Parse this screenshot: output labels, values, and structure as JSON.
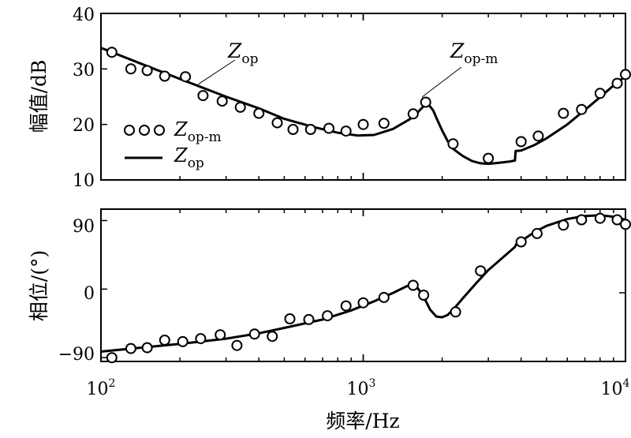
{
  "chart_data": [
    {
      "type": "line",
      "ylabel": "幅值/dB",
      "xscale": "log",
      "xlim": [
        100,
        10000
      ],
      "ylim": [
        10,
        40
      ],
      "yticks": [
        "10",
        "20",
        "30",
        "40"
      ],
      "legend": {
        "placement": "left",
        "markers_label": {
          "base": "Z",
          "sub": "op-m"
        },
        "line_label": {
          "base": "Z",
          "sub": "op"
        }
      },
      "annotations": [
        {
          "base": "Z",
          "sub": "op"
        },
        {
          "base": "Z",
          "sub": "op-m"
        }
      ],
      "series": [
        {
          "style": "line",
          "x": [
            100,
            150,
            200,
            300,
            400,
            500,
            650,
            800,
            950,
            1100,
            1300,
            1500,
            1600,
            1700,
            1780,
            1850,
            1900,
            2000,
            2100,
            2200,
            2400,
            2600,
            2800,
            3000,
            3300,
            3600,
            3790,
            3810,
            4000,
            4500,
            5000,
            6000,
            7000,
            8000,
            9000,
            10000
          ],
          "y": [
            33.8,
            30.5,
            28.2,
            25.0,
            22.9,
            21.0,
            19.5,
            18.5,
            18.0,
            18.1,
            19.2,
            20.9,
            22.0,
            23.3,
            23.5,
            22.5,
            21.2,
            18.9,
            17.0,
            15.6,
            14.3,
            13.4,
            13.0,
            12.9,
            13.1,
            13.3,
            13.5,
            15.2,
            15.3,
            16.3,
            17.5,
            20.0,
            22.6,
            24.9,
            27.0,
            28.7
          ]
        },
        {
          "style": "markers",
          "x": [
            110,
            130,
            150,
            175,
            210,
            245,
            290,
            340,
            400,
            470,
            540,
            630,
            740,
            860,
            1000,
            1200,
            1550,
            1730,
            2200,
            3000,
            4000,
            4650,
            5800,
            6800,
            8000,
            9300,
            10000
          ],
          "y": [
            33.0,
            30.0,
            29.7,
            28.7,
            28.6,
            25.2,
            24.2,
            23.1,
            22.0,
            20.3,
            19.1,
            19.1,
            19.3,
            18.8,
            20.0,
            20.2,
            21.9,
            24.0,
            16.5,
            13.9,
            16.9,
            17.9,
            22.0,
            22.7,
            25.6,
            27.4,
            29.0
          ]
        }
      ]
    },
    {
      "type": "line",
      "xlabel": "频率/Hz",
      "ylabel": "相位/(°)",
      "xscale": "log",
      "xlim": [
        100,
        10000
      ],
      "ylim": [
        -95,
        105
      ],
      "xticks": [
        {
          "base": "10",
          "exp": "2"
        },
        {
          "base": "10",
          "exp": "3"
        },
        {
          "base": "10",
          "exp": "4"
        }
      ],
      "yticks": [
        "−90",
        "0",
        "90"
      ],
      "series": [
        {
          "style": "line",
          "x": [
            100,
            150,
            200,
            300,
            400,
            500,
            700,
            900,
            1100,
            1300,
            1450,
            1520,
            1600,
            1700,
            1800,
            1900,
            2000,
            2100,
            2200,
            2400,
            2700,
            3000,
            3500,
            3780,
            3850,
            4000,
            4500,
            5000,
            6000,
            7000,
            8000,
            9000,
            10000
          ],
          "y": [
            -82,
            -76,
            -72,
            -65,
            -58,
            -51,
            -40,
            -28,
            -16,
            -5,
            3,
            6,
            3,
            -10,
            -27,
            -36,
            -37,
            -34,
            -27,
            -12,
            8,
            25,
            45,
            55,
            60,
            63,
            75,
            83,
            92,
            96,
            97,
            95,
            91
          ]
        },
        {
          "style": "markers",
          "x": [
            110,
            130,
            150,
            175,
            205,
            240,
            285,
            330,
            385,
            450,
            525,
            620,
            730,
            860,
            1000,
            1200,
            1550,
            1700,
            2250,
            2800,
            4000,
            4600,
            5800,
            6800,
            8000,
            9300,
            10000
          ],
          "y": [
            -90,
            -78,
            -77,
            -67,
            -69,
            -65,
            -60,
            -74,
            -59,
            -62,
            -39,
            -40,
            -35,
            -22,
            -18,
            -11,
            5,
            -8,
            -30,
            24,
            62,
            73,
            84,
            91,
            93,
            91,
            85
          ]
        }
      ]
    }
  ]
}
